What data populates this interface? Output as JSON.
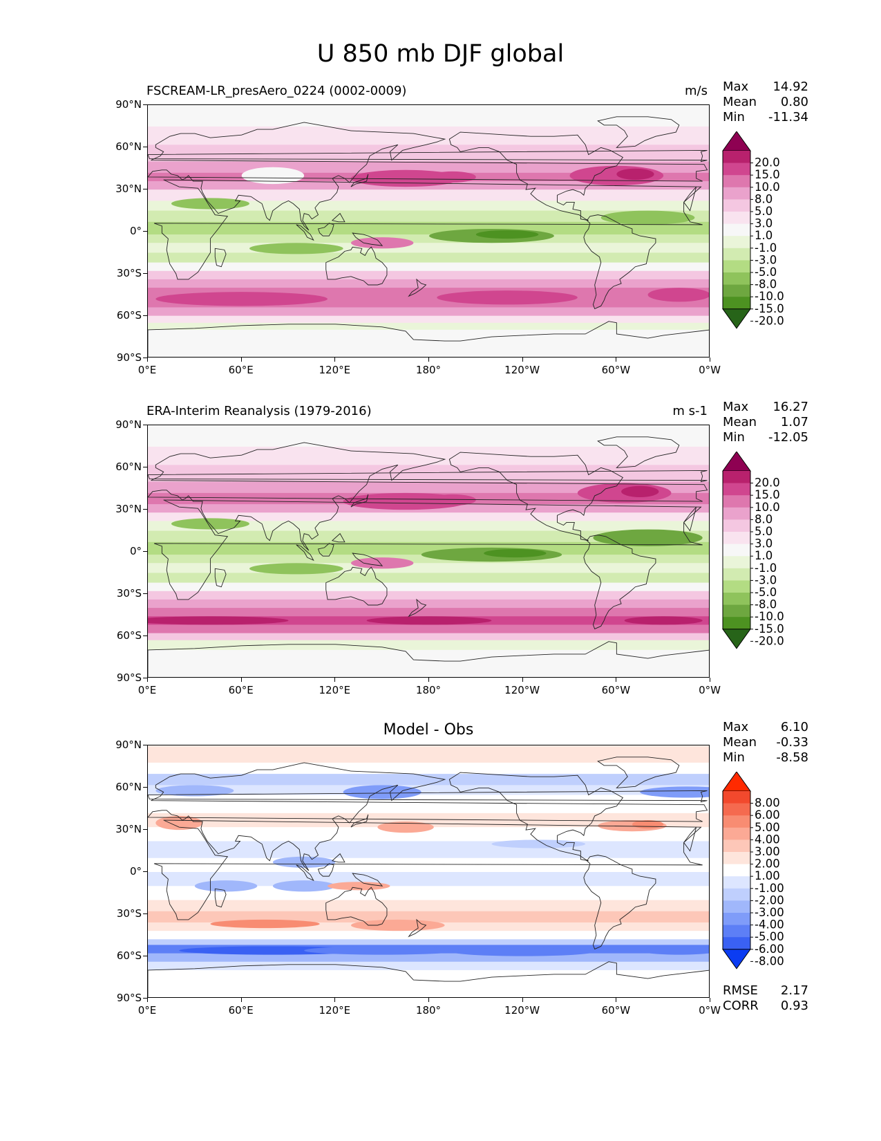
{
  "figure": {
    "title": "U 850 mb DJF global"
  },
  "panels": [
    {
      "id": "test",
      "title": "FSCREAM-LR_presAero_0224 (0002-0009)",
      "units": "m/s",
      "stats": [
        {
          "label": "Max",
          "value": "14.92"
        },
        {
          "label": "Mean",
          "value": "0.80"
        },
        {
          "label": "Min",
          "value": "-11.34"
        }
      ],
      "colorbar": {
        "levels": [
          "20.0",
          "15.0",
          "10.0",
          "8.0",
          "5.0",
          "3.0",
          "1.0",
          "-1.0",
          "-3.0",
          "-5.0",
          "-8.0",
          "-10.0",
          "-15.0",
          "-20.0"
        ],
        "colors": [
          "#8e0152",
          "#b8216d",
          "#d0468f",
          "#de77ae",
          "#eaa2cc",
          "#f4c7e1",
          "#f9e3ef",
          "#f7f7f7",
          "#eaf5d9",
          "#d2ebb1",
          "#b3dc83",
          "#8fc35c",
          "#6ea740",
          "#4d9221",
          "#276419"
        ]
      }
    },
    {
      "id": "ref",
      "title": "ERA-Interim Reanalysis (1979-2016)",
      "units": "m s-1",
      "stats": [
        {
          "label": "Max",
          "value": "16.27"
        },
        {
          "label": "Mean",
          "value": "1.07"
        },
        {
          "label": "Min",
          "value": "-12.05"
        }
      ],
      "colorbar": {
        "levels": [
          "20.0",
          "15.0",
          "10.0",
          "8.0",
          "5.0",
          "3.0",
          "1.0",
          "-1.0",
          "-3.0",
          "-5.0",
          "-8.0",
          "-10.0",
          "-15.0",
          "-20.0"
        ],
        "colors": [
          "#8e0152",
          "#b8216d",
          "#d0468f",
          "#de77ae",
          "#eaa2cc",
          "#f4c7e1",
          "#f9e3ef",
          "#f7f7f7",
          "#eaf5d9",
          "#d2ebb1",
          "#b3dc83",
          "#8fc35c",
          "#6ea740",
          "#4d9221",
          "#276419"
        ]
      }
    },
    {
      "id": "diff",
      "title": "Model - Obs",
      "units": "",
      "stats": [
        {
          "label": "Max",
          "value": "6.10"
        },
        {
          "label": "Mean",
          "value": "-0.33"
        },
        {
          "label": "Min",
          "value": "-8.58"
        }
      ],
      "extra_stats": [
        {
          "label": "RMSE",
          "value": "2.17"
        },
        {
          "label": "CORR",
          "value": "0.93"
        }
      ],
      "colorbar": {
        "levels": [
          "8.00",
          "6.00",
          "5.00",
          "4.00",
          "3.00",
          "2.00",
          "1.00",
          "-1.00",
          "-2.00",
          "-3.00",
          "-4.00",
          "-5.00",
          "-6.00",
          "-8.00"
        ],
        "colors": [
          "#ff2a00",
          "#f2492d",
          "#f56a4f",
          "#f88c72",
          "#fba995",
          "#fdc7b8",
          "#fee5dc",
          "#ffffff",
          "#dde6ff",
          "#bfcffd",
          "#a0b7fb",
          "#7f9cf9",
          "#5d7ff6",
          "#3a61f3",
          "#0b3cf2"
        ]
      }
    }
  ],
  "axes": {
    "lat_ticks": [
      "90°N",
      "60°N",
      "30°N",
      "0°",
      "30°S",
      "60°S",
      "90°S"
    ],
    "lon_ticks": [
      "0°E",
      "60°E",
      "120°E",
      "180°",
      "120°W",
      "60°W",
      "0°W"
    ]
  }
}
